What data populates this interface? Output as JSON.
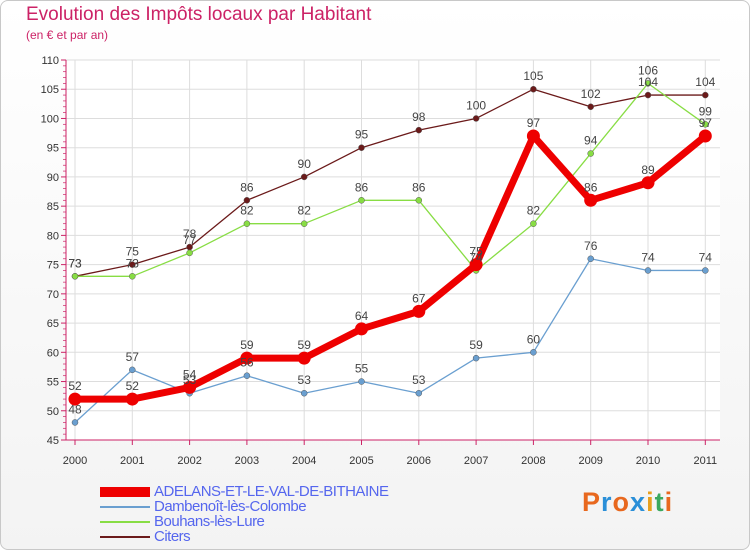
{
  "header": {
    "title": "Evolution des Impôts locaux par Habitant",
    "subtitle": "(en € et par an)"
  },
  "brand": {
    "letters": [
      "P",
      "r",
      "o",
      "x",
      "i",
      "t",
      "i"
    ],
    "colors": [
      "#e8681e",
      "#2a8fd8",
      "#e8681e",
      "#2a8fd8",
      "#e8a01e",
      "#3aa85e",
      "#e8681e"
    ]
  },
  "chart_data": {
    "type": "line",
    "title": "Evolution des Impôts locaux par Habitant",
    "subtitle": "(en € et par an)",
    "xlabel": "",
    "ylabel": "",
    "ylim": [
      45,
      110
    ],
    "yticks": [
      45,
      50,
      55,
      60,
      65,
      70,
      75,
      80,
      85,
      90,
      95,
      100,
      105,
      110
    ],
    "categories": [
      "2000",
      "2001",
      "2002",
      "2003",
      "2004",
      "2005",
      "2006",
      "2007",
      "2008",
      "2009",
      "2010",
      "2011"
    ],
    "grid": true,
    "legend_position": "bottom-left",
    "series": [
      {
        "name": "Citers",
        "color": "#6b1a1a",
        "values": [
          73,
          75,
          78,
          86,
          90,
          95,
          98,
          100,
          105,
          102,
          104,
          104
        ],
        "labels": [
          "73",
          "75",
          "78",
          "86",
          "90",
          "95",
          "98",
          "100",
          "105",
          "102",
          "104",
          "104"
        ]
      },
      {
        "name": "Bouhans-lès-Lure",
        "color": "#88dd44",
        "values": [
          73,
          73,
          77,
          82,
          82,
          86,
          86,
          74,
          82,
          94,
          106,
          99
        ],
        "labels": [
          "73",
          "73",
          "77",
          "82",
          "82",
          "86",
          "86",
          "74",
          "82",
          "94",
          "106",
          "99"
        ]
      },
      {
        "name": "Dambenoît-lès-Colombe",
        "color": "#6a9fd0",
        "values": [
          48,
          57,
          53,
          56,
          53,
          55,
          53,
          59,
          60,
          76,
          74,
          74
        ],
        "labels": [
          "48",
          "57",
          "53",
          "56",
          "53",
          "55",
          "53",
          "59",
          "60",
          "76",
          "74",
          "74"
        ]
      },
      {
        "name": "ADELANS-ET-LE-VAL-DE-BITHAINE",
        "color": "#ee0000",
        "values": [
          52,
          52,
          54,
          59,
          59,
          64,
          67,
          75,
          97,
          86,
          89,
          97
        ],
        "labels": [
          "52",
          "52",
          "54",
          "59",
          "59",
          "64",
          "67",
          "75",
          "97",
          "86",
          "89",
          "97"
        ]
      }
    ]
  },
  "legend": {
    "items": [
      {
        "label": "ADELANS-ET-LE-VAL-DE-BITHAINE",
        "color": "#ee0000"
      },
      {
        "label": "Dambenoît-lès-Colombe",
        "color": "#6a9fd0"
      },
      {
        "label": "Bouhans-lès-Lure",
        "color": "#88dd44"
      },
      {
        "label": "Citers",
        "color": "#6b1a1a"
      }
    ]
  }
}
